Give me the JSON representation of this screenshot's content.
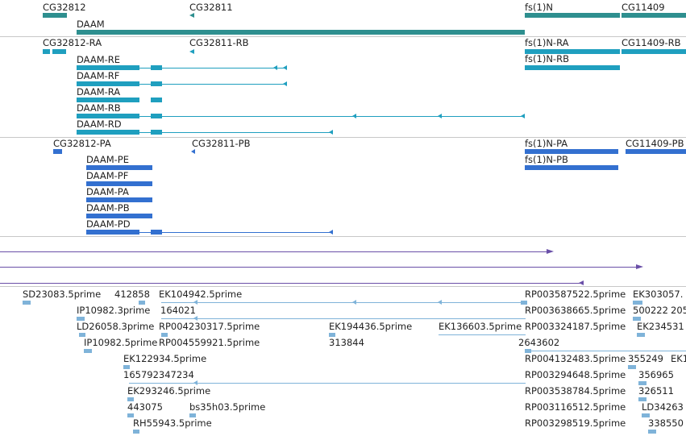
{
  "colors": {
    "gene": "#2e8f8f",
    "transcript": "#1f9fbf",
    "protein": "#3370d0",
    "match": "#6a4fa8",
    "est": "#7fb3d9",
    "separator": "#c8c8c8"
  },
  "tracks": {
    "genes": {
      "items": [
        {
          "label": "CG32812"
        },
        {
          "label": "CG32811"
        },
        {
          "label": "DAAM"
        },
        {
          "label": "fs(1)N"
        },
        {
          "label": "CG11409"
        }
      ]
    },
    "transcripts": {
      "items": [
        {
          "label": "CG32812-RA"
        },
        {
          "label": "CG32811-RB"
        },
        {
          "label": "DAAM-RE"
        },
        {
          "label": "DAAM-RF"
        },
        {
          "label": "DAAM-RA"
        },
        {
          "label": "DAAM-RB"
        },
        {
          "label": "DAAM-RD"
        },
        {
          "label": "fs(1)N-RA"
        },
        {
          "label": "fs(1)N-RB"
        },
        {
          "label": "CG11409-RB"
        }
      ]
    },
    "proteins": {
      "items": [
        {
          "label": "CG32812-PA"
        },
        {
          "label": "CG32811-PB"
        },
        {
          "label": "DAAM-PE"
        },
        {
          "label": "DAAM-PF"
        },
        {
          "label": "DAAM-PA"
        },
        {
          "label": "DAAM-PB"
        },
        {
          "label": "DAAM-PD"
        },
        {
          "label": "fs(1)N-PA"
        },
        {
          "label": "fs(1)N-PB"
        },
        {
          "label": "CG11409-PB"
        }
      ]
    },
    "ests": {
      "items": [
        {
          "label": "SD23083.5prime"
        },
        {
          "label": "412858"
        },
        {
          "label": "EK104942.5prime"
        },
        {
          "label": "RP003587522.5prime"
        },
        {
          "label": "EK303057."
        },
        {
          "label": "IP10982.3prime"
        },
        {
          "label": "164021"
        },
        {
          "label": "RP003638665.5prime"
        },
        {
          "label": "500222"
        },
        {
          "label": "205"
        },
        {
          "label": "LD26058.3prime"
        },
        {
          "label": "RP004230317.5prime"
        },
        {
          "label": "EK194436.5prime"
        },
        {
          "label": "EK136603.5prime"
        },
        {
          "label": "RP003324187.5prime"
        },
        {
          "label": "EK234531"
        },
        {
          "label": "IP10982.5prime"
        },
        {
          "label": "RP004559921.5prime"
        },
        {
          "label": "313844"
        },
        {
          "label": "2643602"
        },
        {
          "label": "EK122934.5prime"
        },
        {
          "label": "RP004132483.5prime"
        },
        {
          "label": "355249"
        },
        {
          "label": "EK1"
        },
        {
          "label": "165792347234"
        },
        {
          "label": "RP003294648.5prime"
        },
        {
          "label": "356965"
        },
        {
          "label": "EK293246.5prime"
        },
        {
          "label": "RP003538784.5prime"
        },
        {
          "label": "326511"
        },
        {
          "label": "443075"
        },
        {
          "label": "bs35h03.5prime"
        },
        {
          "label": "RP003116512.5prime"
        },
        {
          "label": "LD34263"
        },
        {
          "label": "RH55943.5prime"
        },
        {
          "label": "RP003298519.5prime"
        },
        {
          "label": "338550"
        }
      ]
    }
  }
}
